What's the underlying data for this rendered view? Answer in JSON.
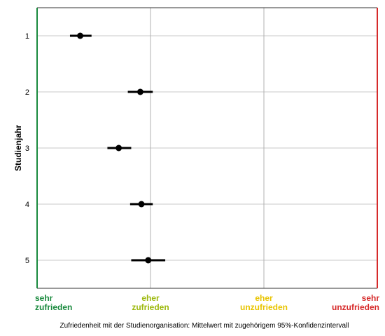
{
  "chart_data": {
    "type": "dot_ci",
    "ylabel": "Studienjahr",
    "xlabel": "Zufriedenheit mit der Studienorganisation: Mittelwert mit zugehörigem 95%-Konfidenzintervall",
    "categories": [
      "1",
      "2",
      "3",
      "4",
      "5"
    ],
    "values": [
      1.38,
      1.91,
      1.72,
      1.92,
      1.98
    ],
    "lower": [
      1.29,
      1.8,
      1.62,
      1.82,
      1.83
    ],
    "upper": [
      1.48,
      2.02,
      1.83,
      2.02,
      2.13
    ],
    "color": "#000000",
    "xlim": [
      1,
      4
    ],
    "xticks": [
      {
        "value": 1,
        "label": [
          "sehr",
          "zufrieden"
        ]
      },
      {
        "value": 2,
        "label": [
          "eher",
          "zufrieden"
        ]
      },
      {
        "value": 3,
        "label": [
          "eher",
          "unzufrieden"
        ]
      },
      {
        "value": 4,
        "label": [
          "sehr",
          "unzufrieden"
        ]
      }
    ],
    "xtick_colors": [
      "#1a8a3e",
      "#9cb80c",
      "#e8c400",
      "#d62a2a"
    ],
    "grid": true
  }
}
